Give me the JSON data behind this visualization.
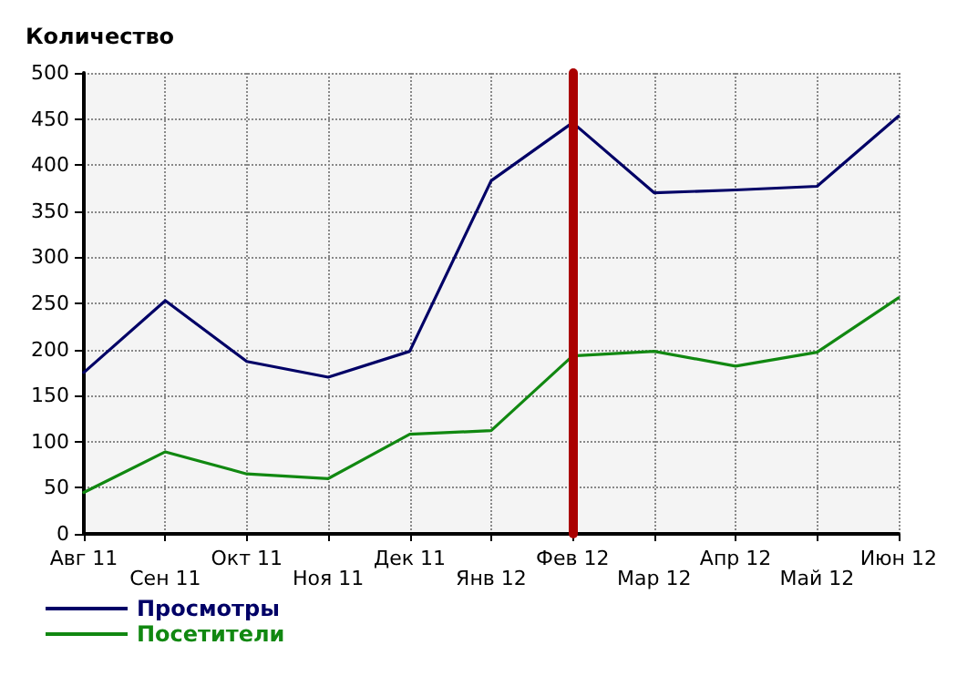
{
  "chart_data": {
    "type": "line",
    "ylabel": "Количество",
    "categories": [
      "Авг 11",
      "Сен 11",
      "Окт 11",
      "Ноя 11",
      "Дек 11",
      "Янв 12",
      "Фев 12",
      "Мар 12",
      "Апр 12",
      "Май 12",
      "Июн 12"
    ],
    "series": [
      {
        "name": "Просмотры",
        "color": "#000066",
        "values": [
          175,
          253,
          187,
          170,
          198,
          383,
          446,
          370,
          373,
          377,
          453
        ]
      },
      {
        "name": "Посетители",
        "color": "#118811",
        "values": [
          45,
          89,
          65,
          60,
          108,
          112,
          193,
          198,
          182,
          197,
          256
        ]
      }
    ],
    "ylim": [
      0,
      500
    ],
    "yticks": [
      0,
      50,
      100,
      150,
      200,
      250,
      300,
      350,
      400,
      450,
      500
    ],
    "grid": true,
    "legend": "bottom left",
    "marker": "none",
    "line_style": "solid",
    "ref_lines": [
      {
        "axis": "x",
        "value": "Фев 12",
        "color": "#aa0000"
      }
    ]
  }
}
